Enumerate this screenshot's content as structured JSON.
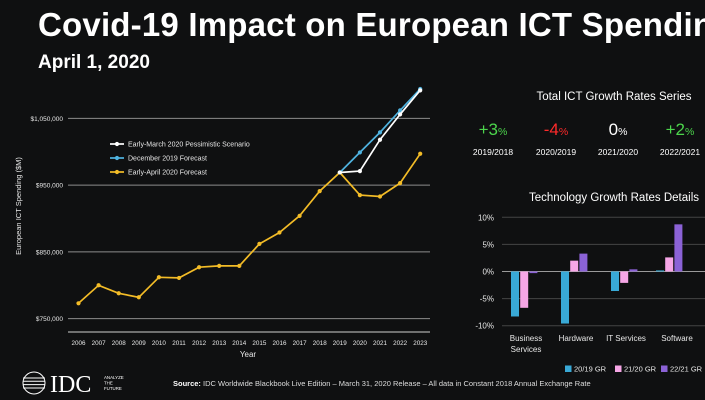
{
  "header": {
    "title": "Covid-19 Impact on European ICT Spending",
    "subtitle": "April 1, 2020"
  },
  "footer": {
    "source_label": "Source:",
    "source_text": "IDC Worldwide Blackbook Live Edition – March 31, 2020 Release – All data in Constant 2018 Annual Exchange Rate",
    "logo_text": "IDC",
    "logo_tagline": "ANALYZE THE FUTURE"
  },
  "colors": {
    "pessimistic": "#ffffff",
    "december": "#4fb3e0",
    "april": "#f3bc27",
    "gr_20_19": "#39a9d6",
    "gr_21_20": "#f6a6e6",
    "gr_22_21": "#8b62d6",
    "positive": "#4cd54c",
    "negative": "#ff2a2a",
    "neutral": "#ffffff"
  },
  "summary": {
    "title": "Total ICT Growth Rates Series",
    "items": [
      {
        "value": "+3",
        "unit": "%",
        "period": "2019/2018",
        "tone": "positive"
      },
      {
        "value": "-4",
        "unit": "%",
        "period": "2020/2019",
        "tone": "negative"
      },
      {
        "value": "0",
        "unit": "%",
        "period": "2021/2020",
        "tone": "neutral"
      },
      {
        "value": "+2",
        "unit": "%",
        "period": "2022/2021",
        "tone": "positive"
      }
    ]
  },
  "chart_data": [
    {
      "type": "line",
      "ylabel": "European ICT Spending ($M)",
      "xlabel": "Year",
      "x": [
        2006,
        2007,
        2008,
        2009,
        2010,
        2011,
        2012,
        2013,
        2014,
        2015,
        2016,
        2017,
        2018,
        2019,
        2020,
        2021,
        2022,
        2023
      ],
      "ylim": [
        730000,
        1100000
      ],
      "yticks": [
        750000,
        850000,
        950000,
        1050000
      ],
      "ytick_labels": [
        "$750,000",
        "$850,000",
        "$950,000",
        "$1,050,000"
      ],
      "legend_position": "top-left",
      "series": [
        {
          "name": "Early-March 2020 Pessimistic Scenario",
          "color": "#ffffff",
          "x": [
            2019,
            2020,
            2021,
            2022,
            2023
          ],
          "values": [
            969000,
            971000,
            1018000,
            1056000,
            1092000
          ]
        },
        {
          "name": "December 2019 Forecast",
          "color": "#4fb3e0",
          "x": [
            2019,
            2020,
            2021,
            2022,
            2023
          ],
          "values": [
            969000,
            999000,
            1029000,
            1062000,
            1094000
          ]
        },
        {
          "name": "Early-April 2020 Forecast",
          "color": "#f3bc27",
          "x": [
            2006,
            2007,
            2008,
            2009,
            2010,
            2011,
            2012,
            2013,
            2014,
            2015,
            2016,
            2017,
            2018,
            2019,
            2020,
            2021,
            2022,
            2023
          ],
          "values": [
            773000,
            800000,
            788000,
            782000,
            812000,
            811000,
            827000,
            829000,
            829000,
            862000,
            879000,
            904000,
            941000,
            969000,
            935000,
            933000,
            953000,
            997000
          ]
        }
      ]
    },
    {
      "type": "bar",
      "title": "Technology Growth Rates Details",
      "categories": [
        "Business Services",
        "Hardware",
        "IT Services",
        "Software"
      ],
      "category_lines": [
        [
          "Business",
          "Services"
        ],
        [
          "Hardware"
        ],
        [
          "IT Services"
        ],
        [
          "Software"
        ]
      ],
      "ylim": [
        -10,
        10
      ],
      "yticks": [
        10,
        5,
        0,
        -5,
        -10
      ],
      "ytick_labels": [
        "10%",
        "5%",
        "0%",
        "-5%",
        "-10%"
      ],
      "legend_position": "bottom",
      "series": [
        {
          "name": "20/19 GR",
          "color": "#39a9d6",
          "values": [
            -8.3,
            -9.6,
            -3.6,
            0.2
          ]
        },
        {
          "name": "21/20 GR",
          "color": "#f6a6e6",
          "values": [
            -6.7,
            2.0,
            -2.1,
            2.6
          ]
        },
        {
          "name": "22/21 GR",
          "color": "#8b62d6",
          "values": [
            -0.3,
            3.3,
            0.4,
            8.7
          ]
        }
      ]
    }
  ]
}
